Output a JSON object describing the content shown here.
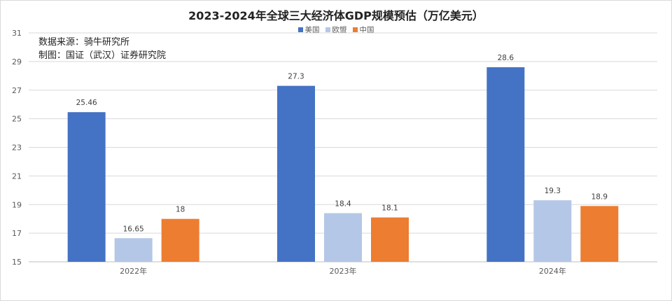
{
  "title": "2023-2024年全球三大经济体GDP规模预估（万亿美元）",
  "source_lines": [
    "数据来源：骑牛研究所",
    "制图：国证（武汉）证券研究院"
  ],
  "colors": {
    "grid": "#d9d9d9",
    "axis": "#bfbfbf"
  },
  "chart_data": {
    "type": "bar",
    "title": "2023-2024年全球三大经济体GDP规模预估（万亿美元）",
    "categories": [
      "2022年",
      "2023年",
      "2024年"
    ],
    "series": [
      {
        "name": "美国",
        "color": "#4472C4",
        "values": [
          25.46,
          27.3,
          28.6
        ]
      },
      {
        "name": "欧盟",
        "color": "#B4C7E7",
        "values": [
          16.65,
          18.4,
          19.3
        ]
      },
      {
        "name": "中国",
        "color": "#ED7D31",
        "values": [
          18,
          18.1,
          18.9
        ]
      }
    ],
    "ylim": [
      15,
      31
    ],
    "yticks": [
      15,
      17,
      19,
      21,
      23,
      25,
      27,
      29,
      31
    ],
    "grid": true,
    "legend": "top-center",
    "data_labels": true,
    "xlabel": "",
    "ylabel": ""
  }
}
